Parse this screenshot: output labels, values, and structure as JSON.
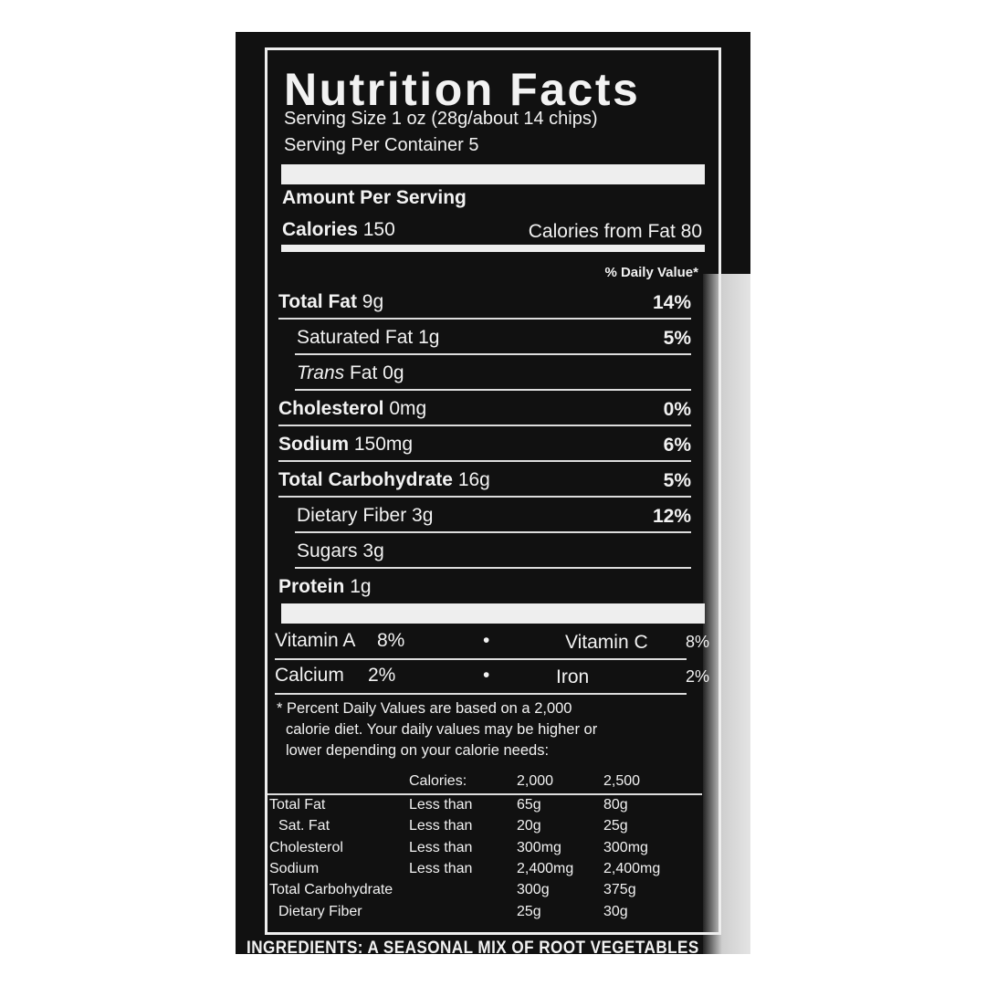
{
  "header": {
    "title": "Nutrition Facts",
    "serving_size": "Serving Size 1 oz (28g/about 14 chips)",
    "servings": "Serving Per Container 5"
  },
  "amount_per_serving": "Amount Per Serving",
  "calories": {
    "label": "Calories",
    "value": "150",
    "from_fat": "Calories from Fat 80"
  },
  "daily_value_heading": "% Daily Value*",
  "nutrients": [
    {
      "name": "Total Fat",
      "amount": "9g",
      "dv": "14%",
      "indent": false
    },
    {
      "name": "Saturated Fat",
      "amount": "1g",
      "dv": "5%",
      "indent": true
    },
    {
      "italic": "Trans",
      "name": "Fat",
      "amount": "0g",
      "indent": true
    },
    {
      "name": "Cholesterol",
      "amount": "0mg",
      "dv": "0%",
      "indent": false
    },
    {
      "name": "Sodium",
      "amount": "150mg",
      "dv": "6%",
      "indent": false
    },
    {
      "name": "Total Carbohydrate",
      "amount": "16g",
      "dv": "5%",
      "indent": false
    },
    {
      "name": "Dietary Fiber",
      "amount": "3g",
      "dv": "12%",
      "indent": true
    },
    {
      "name": "Sugars",
      "amount": "3g",
      "indent": true
    },
    {
      "name": "Protein",
      "amount": "1g",
      "indent": false
    }
  ],
  "vitamins": [
    [
      {
        "name": "Vitamin A",
        "dv": "8%"
      },
      {
        "name": "Vitamin C",
        "dv": "8%"
      }
    ],
    [
      {
        "name": "Calcium",
        "dv": "2%"
      },
      {
        "name": "Iron",
        "dv": "2%"
      }
    ]
  ],
  "bullet": "•",
  "footnote": [
    "* Percent Daily Values are based on a 2,000",
    "calorie diet. Your daily values may be higher or",
    "lower depending on your calorie needs:"
  ],
  "table": {
    "header": [
      "Calories:",
      "2,000",
      "2,500"
    ],
    "rows": [
      {
        "name": "Total Fat",
        "qualifier": "Less than",
        "a": "65g",
        "b": "80g",
        "indent": false
      },
      {
        "name": "Sat. Fat",
        "qualifier": "Less than",
        "a": "20g",
        "b": "25g",
        "indent": true
      },
      {
        "name": "Cholesterol",
        "qualifier": "Less than",
        "a": "300mg",
        "b": "300mg",
        "indent": false
      },
      {
        "name": "Sodium",
        "qualifier": "Less than",
        "a": "2,400mg",
        "b": "2,400mg",
        "indent": false
      },
      {
        "name": "Total Carbohydrate",
        "a": "300g",
        "b": "375g",
        "indent": false
      },
      {
        "name": "Dietary Fiber",
        "a": "25g",
        "b": "30g",
        "indent": true
      }
    ]
  },
  "ingredients": "INGREDIENTS: A SEASONAL MIX OF ROOT VEGETABLES"
}
